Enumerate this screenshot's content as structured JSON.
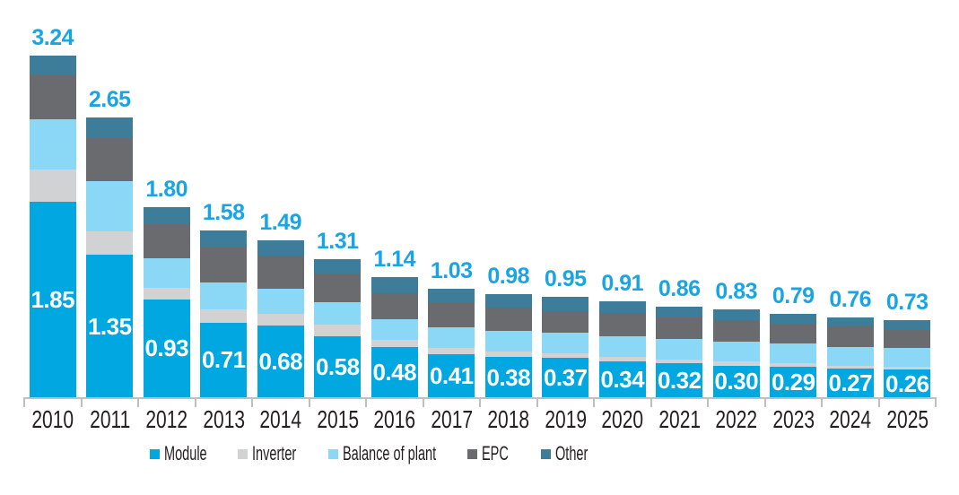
{
  "chart_data": {
    "type": "bar",
    "variant": "stacked-vertical",
    "title": "",
    "xlabel": "",
    "ylabel": "",
    "categories": [
      "2010",
      "2011",
      "2012",
      "2013",
      "2014",
      "2015",
      "2016",
      "2017",
      "2018",
      "2019",
      "2020",
      "2021",
      "2022",
      "2023",
      "2024",
      "2025"
    ],
    "series": [
      {
        "name": "Module",
        "color": "#00a7e1",
        "values": [
          1.85,
          1.35,
          0.93,
          0.71,
          0.68,
          0.58,
          0.48,
          0.41,
          0.38,
          0.37,
          0.34,
          0.32,
          0.3,
          0.29,
          0.27,
          0.26
        ]
      },
      {
        "name": "Inverter",
        "color": "#d0d2d3",
        "values": [
          0.31,
          0.22,
          0.11,
          0.12,
          0.11,
          0.11,
          0.06,
          0.06,
          0.05,
          0.05,
          0.04,
          0.04,
          0.04,
          0.03,
          0.03,
          0.03
        ]
      },
      {
        "name": "Balance of plant",
        "color": "#8bd7f6",
        "values": [
          0.48,
          0.48,
          0.28,
          0.26,
          0.24,
          0.21,
          0.2,
          0.19,
          0.2,
          0.19,
          0.2,
          0.19,
          0.19,
          0.19,
          0.18,
          0.18
        ]
      },
      {
        "name": "EPC",
        "color": "#696b6e",
        "values": [
          0.41,
          0.41,
          0.32,
          0.33,
          0.31,
          0.27,
          0.25,
          0.24,
          0.22,
          0.21,
          0.22,
          0.21,
          0.2,
          0.19,
          0.19,
          0.17
        ]
      },
      {
        "name": "Other",
        "color": "#3e7d9a",
        "values": [
          0.19,
          0.19,
          0.16,
          0.16,
          0.15,
          0.14,
          0.15,
          0.13,
          0.13,
          0.13,
          0.11,
          0.1,
          0.1,
          0.09,
          0.09,
          0.09
        ]
      }
    ],
    "totals": [
      3.24,
      2.65,
      1.8,
      1.58,
      1.49,
      1.31,
      1.14,
      1.03,
      0.98,
      0.95,
      0.91,
      0.86,
      0.83,
      0.79,
      0.76,
      0.73
    ],
    "module_inside_labels": [
      1.85,
      1.35,
      0.93,
      0.71,
      0.68,
      0.58,
      0.48,
      0.41,
      0.38,
      0.37,
      0.34,
      0.32,
      0.3,
      0.29,
      0.27,
      0.26
    ],
    "value_label_format": "two-decimals",
    "legend_position": "bottom",
    "legend_entries": [
      "Module",
      "Inverter",
      "Balance of plant",
      "EPC",
      "Other"
    ],
    "axes": {
      "y_axis_visible": false,
      "gridlines": false,
      "x_axis_line": true,
      "x_ticks_between_categories": true
    },
    "ylim": [
      0,
      3.5
    ]
  },
  "colors": {
    "background": "#ffffff",
    "total_label_blue": "#19a5e2",
    "module_label_white": "#ffffff",
    "axis_gray": "#bdbfc1",
    "text_dark": "#231f20"
  }
}
